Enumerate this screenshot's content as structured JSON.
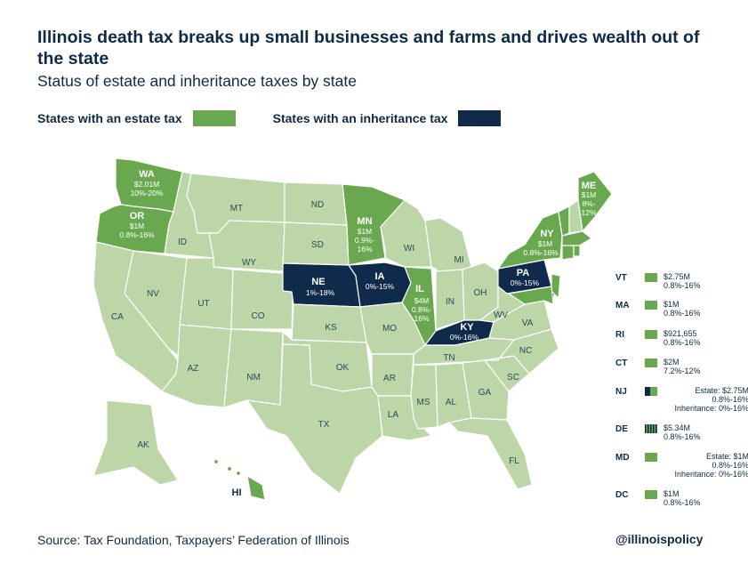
{
  "title": "Illinois death tax breaks up small businesses and farms and drives wealth out of the state",
  "subtitle": "Status of estate and inheritance taxes by state",
  "legend": {
    "estate_label": "States with an estate tax",
    "inheritance_label": "States with an inheritance tax"
  },
  "colors": {
    "estate": "#6aa84f",
    "inheritance": "#0f2a4a",
    "none": "#bcd6a8",
    "border": "#ffffff",
    "text": "#0f2a44"
  },
  "map_labels": {
    "wa": {
      "abbr": "WA",
      "l1": "$2.01M",
      "l2": "10%-20%"
    },
    "or": {
      "abbr": "OR",
      "l1": "$1M",
      "l2": "0.8%-16%"
    },
    "mn": {
      "abbr": "MN",
      "l1": "$1M",
      "l2": "0.9%-",
      "l3": "16%"
    },
    "me": {
      "abbr": "ME",
      "l1": "$1M",
      "l2": "8%-",
      "l3": "12%"
    },
    "ny": {
      "abbr": "NY",
      "l1": "$1M",
      "l2": "0.8%-16%"
    },
    "ne": {
      "abbr": "NE",
      "l1": "1%-18%"
    },
    "ia": {
      "abbr": "IA",
      "l1": "0%-15%"
    },
    "il": {
      "abbr": "IL",
      "l1": "$4M",
      "l2": "0.8%-",
      "l3": "16%"
    },
    "pa": {
      "abbr": "PA",
      "l1": "0%-15%"
    },
    "ky": {
      "abbr": "KY",
      "l1": "0%-16%"
    },
    "hi": {
      "abbr": "HI"
    },
    "mt": "MT",
    "id": "ID",
    "nd": "ND",
    "sd": "SD",
    "wy": "WY",
    "nv": "NV",
    "ut": "UT",
    "co": "CO",
    "ca": "CA",
    "az": "AZ",
    "nm": "NM",
    "ks": "KS",
    "ok": "OK",
    "tx": "TX",
    "mo": "MO",
    "ar": "AR",
    "la": "LA",
    "wi": "WI",
    "mi": "MI",
    "in": "IN",
    "oh": "OH",
    "wv": "WV",
    "va": "VA",
    "nc": "NC",
    "tn": "TN",
    "ms": "MS",
    "al": "AL",
    "ga": "GA",
    "sc": "SC",
    "fl": "FL",
    "ak": "AK"
  },
  "side_states": {
    "vt": {
      "abbr": "VT",
      "l1": "$2.75M",
      "l2": "0.8%-16%"
    },
    "ma": {
      "abbr": "MA",
      "l1": "$1M",
      "l2": "0.8%-16%"
    },
    "ri": {
      "abbr": "RI",
      "l1": "$921,655",
      "l2": "0.8%-16%"
    },
    "ct": {
      "abbr": "CT",
      "l1": "$2M",
      "l2": "7.2%-12%"
    },
    "nj": {
      "abbr": "NJ",
      "l1": "Estate:  $2.75M",
      "l2": "0.8%-16%",
      "l3": "Inheritance: 0%-16%"
    },
    "de": {
      "abbr": "DE",
      "l1": "$5.34M",
      "l2": "0.8%-16%"
    },
    "md": {
      "abbr": "MD",
      "l1": "Estate:  $1M",
      "l2": "0.8%-16%",
      "l3": "Inheritance: 0%-16%"
    },
    "dc": {
      "abbr": "DC",
      "l1": "$1M",
      "l2": "0.8%-16%"
    }
  },
  "footer": {
    "source": "Source: Tax Foundation, Taxpayers’ Federation of Illinois",
    "handle": "@illinoispolicy"
  }
}
